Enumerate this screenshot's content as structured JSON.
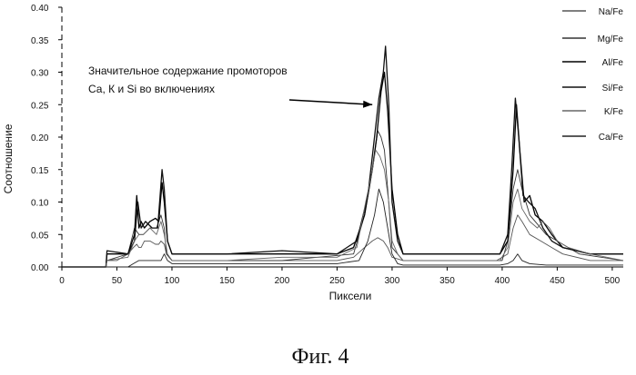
{
  "figure": {
    "caption": "Фиг. 4"
  },
  "chart_data": {
    "type": "line",
    "xlabel": "Пиксели",
    "ylabel": "Соотношение",
    "xlim": [
      0,
      510
    ],
    "ylim": [
      0,
      0.4
    ],
    "x_ticks": [
      "0",
      "50",
      "100",
      "150",
      "200",
      "250",
      "300",
      "350",
      "400",
      "450",
      "500"
    ],
    "y_ticks": [
      "0.00",
      "0.05",
      "0.10",
      "0.15",
      "0.20",
      "0.25",
      "0.30",
      "0.35",
      "0.40"
    ],
    "grid": false,
    "legend_position": "top-right",
    "annotation": {
      "lines": [
        "Значительное содержание промоторов",
        "Са, К и Si во включениях"
      ],
      "arrow_to": [
        282,
        0.25
      ]
    },
    "series": [
      {
        "name": "Na/Fe",
        "color": "#555555",
        "x": [
          0,
          40,
          41,
          45,
          50,
          60,
          65,
          68,
          70,
          72,
          75,
          80,
          85,
          88,
          90,
          93,
          95,
          100,
          150,
          200,
          250,
          265,
          275,
          282,
          287,
          292,
          296,
          300,
          310,
          350,
          395,
          405,
          410,
          414,
          418,
          425,
          435,
          445,
          455,
          480,
          510
        ],
        "y": [
          0,
          0,
          0.01,
          0.01,
          0.01,
          0.02,
          0.03,
          0.035,
          0.03,
          0.03,
          0.04,
          0.04,
          0.035,
          0.035,
          0.04,
          0.035,
          0.02,
          0.01,
          0.01,
          0.01,
          0.01,
          0.015,
          0.03,
          0.04,
          0.045,
          0.04,
          0.03,
          0.015,
          0.01,
          0.01,
          0.01,
          0.02,
          0.06,
          0.08,
          0.07,
          0.05,
          0.04,
          0.03,
          0.02,
          0.01,
          0.01
        ]
      },
      {
        "name": "Mg/Fe",
        "color": "#333333",
        "x": [
          0,
          40,
          41,
          60,
          66,
          70,
          74,
          80,
          86,
          90,
          93,
          95,
          100,
          200,
          265,
          275,
          283,
          287,
          290,
          293,
          296,
          300,
          310,
          350,
          400,
          405,
          410,
          414,
          418,
          425,
          440,
          450,
          470,
          510
        ],
        "y": [
          0,
          0,
          0.01,
          0.02,
          0.06,
          0.05,
          0.05,
          0.06,
          0.06,
          0.08,
          0.06,
          0.02,
          0.01,
          0.01,
          0.02,
          0.08,
          0.16,
          0.21,
          0.2,
          0.18,
          0.12,
          0.03,
          0.01,
          0.01,
          0.01,
          0.04,
          0.12,
          0.15,
          0.12,
          0.08,
          0.05,
          0.04,
          0.02,
          0.01
        ]
      },
      {
        "name": "Al/Fe",
        "color": "#000000",
        "x": [
          0,
          40,
          41,
          60,
          66,
          68,
          70,
          72,
          75,
          80,
          85,
          88,
          91,
          93,
          96,
          100,
          150,
          200,
          250,
          265,
          275,
          282,
          286,
          290,
          293,
          296,
          300,
          305,
          310,
          350,
          398,
          405,
          410,
          413,
          416,
          420,
          425,
          430,
          437,
          445,
          455,
          480,
          510
        ],
        "y": [
          0,
          0,
          0.02,
          0.02,
          0.05,
          0.11,
          0.06,
          0.07,
          0.06,
          0.07,
          0.075,
          0.07,
          0.13,
          0.1,
          0.04,
          0.02,
          0.02,
          0.02,
          0.02,
          0.03,
          0.08,
          0.15,
          0.2,
          0.27,
          0.3,
          0.24,
          0.12,
          0.05,
          0.02,
          0.02,
          0.02,
          0.04,
          0.15,
          0.25,
          0.18,
          0.1,
          0.11,
          0.08,
          0.07,
          0.05,
          0.03,
          0.02,
          0.02
        ]
      },
      {
        "name": "Si/Fe",
        "color": "#111111",
        "x": [
          0,
          40,
          41,
          60,
          66,
          69,
          72,
          76,
          82,
          87,
          91,
          93,
          96,
          100,
          150,
          200,
          250,
          268,
          278,
          284,
          288,
          292,
          294,
          297,
          300,
          305,
          310,
          350,
          398,
          405,
          409,
          412,
          415,
          419,
          424,
          430,
          437,
          445,
          455,
          480,
          510
        ],
        "y": [
          0,
          0,
          0.025,
          0.02,
          0.04,
          0.1,
          0.06,
          0.07,
          0.06,
          0.06,
          0.15,
          0.12,
          0.04,
          0.02,
          0.02,
          0.025,
          0.02,
          0.04,
          0.11,
          0.2,
          0.26,
          0.3,
          0.34,
          0.25,
          0.1,
          0.04,
          0.02,
          0.02,
          0.02,
          0.05,
          0.16,
          0.26,
          0.2,
          0.11,
          0.1,
          0.09,
          0.06,
          0.04,
          0.03,
          0.02,
          0.02
        ]
      },
      {
        "name": "K/Fe",
        "color": "#666666",
        "x": [
          0,
          40,
          41,
          60,
          66,
          70,
          74,
          80,
          86,
          90,
          93,
          96,
          100,
          150,
          200,
          250,
          268,
          276,
          281,
          285,
          289,
          293,
          297,
          300,
          305,
          310,
          350,
          398,
          405,
          410,
          414,
          418,
          425,
          432,
          437,
          443,
          450,
          460,
          480,
          510
        ],
        "y": [
          0,
          0,
          0.01,
          0.015,
          0.04,
          0.05,
          0.05,
          0.06,
          0.05,
          0.07,
          0.05,
          0.02,
          0.01,
          0.01,
          0.015,
          0.015,
          0.03,
          0.1,
          0.14,
          0.18,
          0.17,
          0.15,
          0.1,
          0.04,
          0.02,
          0.01,
          0.01,
          0.01,
          0.03,
          0.1,
          0.12,
          0.09,
          0.07,
          0.06,
          0.07,
          0.06,
          0.04,
          0.03,
          0.02,
          0.01
        ]
      },
      {
        "name": "Ca/Fe",
        "color": "#222222",
        "x": [
          0,
          60,
          65,
          70,
          80,
          90,
          93,
          96,
          100,
          150,
          200,
          250,
          270,
          278,
          284,
          288,
          292,
          296,
          300,
          305,
          310,
          350,
          398,
          405,
          410,
          414,
          418,
          425,
          440,
          460,
          510
        ],
        "y": [
          0,
          0,
          0.005,
          0.01,
          0.01,
          0.01,
          0.02,
          0.01,
          0.005,
          0.005,
          0.005,
          0.005,
          0.01,
          0.04,
          0.08,
          0.12,
          0.1,
          0.06,
          0.02,
          0.005,
          0.003,
          0.003,
          0.003,
          0.005,
          0.01,
          0.02,
          0.01,
          0.005,
          0.003,
          0.003,
          0.003
        ]
      }
    ]
  }
}
